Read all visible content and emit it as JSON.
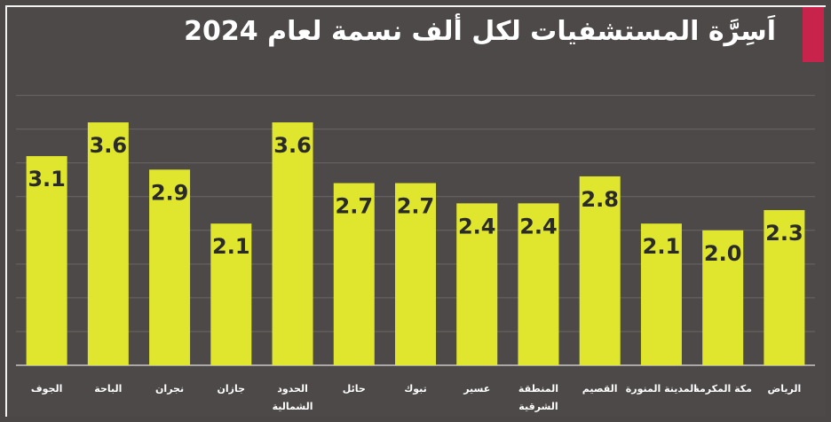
{
  "title": "اَسِرَّة المستشفيات لكل ألف نسمة لعام 2024",
  "colors": {
    "background": "#4d4948",
    "bar": "#dfe62d",
    "accent": "#c8234a",
    "text": "#ffffff"
  },
  "chart_data": {
    "type": "bar",
    "title": "اَسِرَّة المستشفيات لكل ألف نسمة لعام 2024",
    "xlabel": "",
    "ylabel": "",
    "ylim": [
      0,
      4.1
    ],
    "grid": true,
    "categories": [
      [
        "الجوف"
      ],
      [
        "الباحة"
      ],
      [
        "نجران"
      ],
      [
        "جازان"
      ],
      [
        "الحدود",
        "الشمالية"
      ],
      [
        "حائل"
      ],
      [
        "تبوك"
      ],
      [
        "عسير"
      ],
      [
        "المنطقة",
        "الشرقية"
      ],
      [
        "القصيم"
      ],
      [
        "المدينة المنورة"
      ],
      [
        "مكة المكرمة"
      ],
      [
        "الرياض"
      ]
    ],
    "values": [
      3.1,
      3.6,
      2.9,
      2.1,
      3.6,
      2.7,
      2.7,
      2.4,
      2.4,
      2.8,
      2.1,
      2.0,
      2.3
    ],
    "value_labels": [
      "3.1",
      "3.6",
      "2.9",
      "2.1",
      "3.6",
      "2.7",
      "2.7",
      "2.4",
      "2.4",
      "2.8",
      "2.1",
      "2.0",
      "2.3"
    ]
  }
}
